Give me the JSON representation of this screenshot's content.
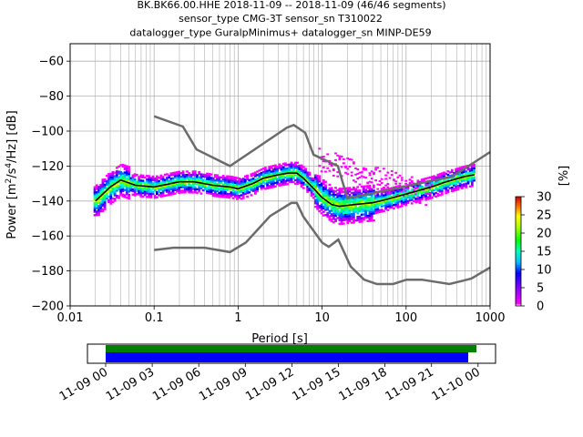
{
  "title_lines": [
    "BK.BK66.00.HHE   2018-11-09 -- 2018-11-09  (46/46 segments)",
    "sensor_type CMG-3T sensor_sn T310022",
    "datalogger_type GuralpMinimus+ datalogger_sn MINP-DE59"
  ],
  "chart_data": [
    {
      "type": "heatmap",
      "name": "ppsd",
      "xlabel": "Period [s]",
      "ylabel": "Power [m²/s⁴/Hz] [dB]",
      "ylabel_parts": {
        "pre": "Power [m",
        "sup1": "2",
        "mid": "/s",
        "sup2": "4",
        "post": "/Hz] [dB]"
      },
      "x_scale": "log",
      "xlim": [
        0.01,
        1000
      ],
      "ylim": [
        -200,
        -50
      ],
      "x_ticks": [
        0.01,
        0.1,
        1,
        10,
        100,
        1000
      ],
      "x_tick_labels": [
        "0.01",
        "0.1",
        "1",
        "10",
        "100",
        "1000"
      ],
      "y_ticks": [
        -200,
        -180,
        -160,
        -140,
        -120,
        -100,
        -80,
        -60
      ],
      "y_tick_labels": [
        "−200",
        "−180",
        "−160",
        "−140",
        "−120",
        "−100",
        "−80",
        "−60"
      ],
      "grid": true,
      "colorbar": {
        "label": "[%]",
        "range": [
          0,
          30
        ],
        "ticks": [
          0,
          5,
          10,
          15,
          20,
          25,
          30
        ],
        "tick_labels": [
          "0",
          "5",
          "10",
          "15",
          "20",
          "25",
          "30"
        ]
      },
      "noise_model_high": [
        [
          0.1,
          -91.5
        ],
        [
          0.22,
          -97.4
        ],
        [
          0.32,
          -110.5
        ],
        [
          0.8,
          -120
        ],
        [
          3.8,
          -98
        ],
        [
          4.6,
          -96.5
        ],
        [
          6.3,
          -101
        ],
        [
          7.9,
          -113.5
        ],
        [
          15.4,
          -120
        ],
        [
          20,
          -138.5
        ],
        [
          354.8,
          -126
        ],
        [
          1000,
          -112
        ]
      ],
      "noise_model_low": [
        [
          0.1,
          -168
        ],
        [
          0.17,
          -166.7
        ],
        [
          0.4,
          -166.7
        ],
        [
          0.8,
          -169.2
        ],
        [
          1.24,
          -163.7
        ],
        [
          2.4,
          -148.6
        ],
        [
          4.3,
          -141.1
        ],
        [
          5,
          -141.1
        ],
        [
          6,
          -149
        ],
        [
          10,
          -163.8
        ],
        [
          12,
          -166.2
        ],
        [
          15.6,
          -162.1
        ],
        [
          21.9,
          -177.5
        ],
        [
          31.6,
          -185
        ],
        [
          45,
          -187.5
        ],
        [
          70,
          -187.5
        ],
        [
          101,
          -185
        ],
        [
          154,
          -185
        ],
        [
          328,
          -187.5
        ],
        [
          600,
          -184.4
        ],
        [
          1000,
          -178
        ]
      ],
      "mean_curve": [
        [
          0.02,
          -140
        ],
        [
          0.03,
          -132
        ],
        [
          0.04,
          -128
        ],
        [
          0.06,
          -131
        ],
        [
          0.1,
          -132
        ],
        [
          0.2,
          -129
        ],
        [
          0.3,
          -129
        ],
        [
          0.5,
          -131
        ],
        [
          0.8,
          -132
        ],
        [
          1,
          -133
        ],
        [
          1.5,
          -130
        ],
        [
          2,
          -127
        ],
        [
          3,
          -125
        ],
        [
          4,
          -124
        ],
        [
          5,
          -124
        ],
        [
          6,
          -127
        ],
        [
          8,
          -133
        ],
        [
          10,
          -138
        ],
        [
          13,
          -142
        ],
        [
          16,
          -143
        ],
        [
          25,
          -142
        ],
        [
          40,
          -141
        ],
        [
          60,
          -139
        ],
        [
          100,
          -136
        ],
        [
          200,
          -132
        ],
        [
          300,
          -129
        ],
        [
          500,
          -126
        ],
        [
          650,
          -125
        ]
      ]
    },
    {
      "type": "timeline",
      "name": "data-coverage",
      "x_tick_labels": [
        "11-09 00",
        "11-09 03",
        "11-09 06",
        "11-09 09",
        "11-09 12",
        "11-09 15",
        "11-09 18",
        "11-09 21",
        "11-10 00"
      ],
      "coverage_bars": [
        {
          "color": "#008000",
          "start": "11-09 00:00",
          "end": "11-10 00:30"
        },
        {
          "color": "#0000ff",
          "start": "11-09 00:00",
          "end": "11-09 23:40"
        }
      ]
    }
  ],
  "colors": {
    "noise_model": "#6b6b6b",
    "mean": "#000000",
    "coverage_green": "#008000",
    "coverage_blue": "#0000ff"
  }
}
